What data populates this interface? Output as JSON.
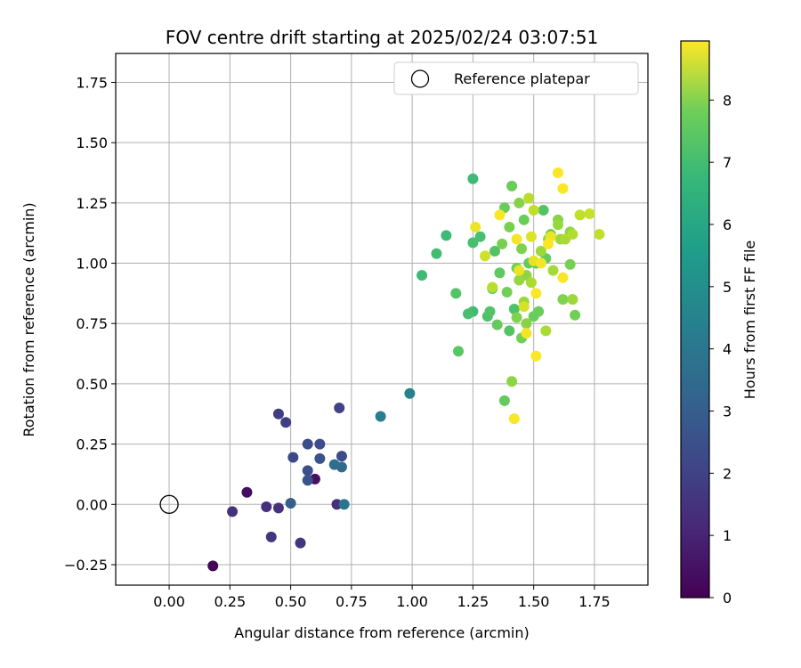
{
  "chart_data": {
    "type": "scatter",
    "title": "FOV centre drift starting at 2025/02/24 03:07:51",
    "xlabel": "Angular distance from reference (arcmin)",
    "ylabel": "Rotation from reference (arcmin)",
    "xlim": [
      -0.22,
      1.97
    ],
    "ylim": [
      -0.335,
      1.87
    ],
    "xticks": [
      0.0,
      0.25,
      0.5,
      0.75,
      1.0,
      1.25,
      1.5,
      1.75
    ],
    "xtick_labels": [
      "0.00",
      "0.25",
      "0.50",
      "0.75",
      "1.00",
      "1.25",
      "1.50",
      "1.75"
    ],
    "yticks": [
      -0.25,
      0.0,
      0.25,
      0.5,
      0.75,
      1.0,
      1.25,
      1.5,
      1.75
    ],
    "ytick_labels": [
      "−0.25",
      "0.00",
      "0.25",
      "0.50",
      "0.75",
      "1.00",
      "1.25",
      "1.50",
      "1.75"
    ],
    "grid": true,
    "legend": {
      "position": "top-right",
      "entries": [
        {
          "label": "Reference platepar",
          "marker": "open-circle",
          "x": 0.0,
          "y": 0.0
        }
      ]
    },
    "colorbar": {
      "label": "Hours from first FF file",
      "colormap": "viridis",
      "range": [
        0,
        8.95
      ],
      "ticks": [
        0,
        1,
        2,
        3,
        4,
        5,
        6,
        7,
        8
      ],
      "tick_labels": [
        "0",
        "1",
        "2",
        "3",
        "4",
        "5",
        "6",
        "7",
        "8"
      ]
    },
    "series": [
      {
        "points": [
          {
            "x": 0.18,
            "y": -0.255,
            "c": 0.1
          },
          {
            "x": 0.32,
            "y": 0.05,
            "c": 0.3
          },
          {
            "x": 0.6,
            "y": 0.105,
            "c": 0.4
          },
          {
            "x": 0.26,
            "y": -0.03,
            "c": 1.3
          },
          {
            "x": 0.4,
            "y": -0.01,
            "c": 1.2
          },
          {
            "x": 0.45,
            "y": -0.015,
            "c": 1.3
          },
          {
            "x": 0.42,
            "y": -0.135,
            "c": 1.4
          },
          {
            "x": 0.54,
            "y": -0.16,
            "c": 1.4
          },
          {
            "x": 0.69,
            "y": 0.0,
            "c": 1.2
          },
          {
            "x": 0.45,
            "y": 0.375,
            "c": 1.6
          },
          {
            "x": 0.48,
            "y": 0.34,
            "c": 1.7
          },
          {
            "x": 0.7,
            "y": 0.4,
            "c": 1.8
          },
          {
            "x": 0.51,
            "y": 0.195,
            "c": 2.0
          },
          {
            "x": 0.57,
            "y": 0.25,
            "c": 2.1
          },
          {
            "x": 0.62,
            "y": 0.25,
            "c": 2.1
          },
          {
            "x": 0.57,
            "y": 0.14,
            "c": 2.2
          },
          {
            "x": 0.57,
            "y": 0.1,
            "c": 2.3
          },
          {
            "x": 0.62,
            "y": 0.19,
            "c": 2.3
          },
          {
            "x": 0.71,
            "y": 0.2,
            "c": 2.1
          },
          {
            "x": 0.5,
            "y": 0.005,
            "c": 2.7
          },
          {
            "x": 0.68,
            "y": 0.165,
            "c": 3.2
          },
          {
            "x": 0.71,
            "y": 0.155,
            "c": 3.1
          },
          {
            "x": 0.72,
            "y": 0.0,
            "c": 3.4
          },
          {
            "x": 0.87,
            "y": 0.365,
            "c": 3.8
          },
          {
            "x": 0.99,
            "y": 0.46,
            "c": 4.0
          },
          {
            "x": 1.04,
            "y": 0.95,
            "c": 6.1
          },
          {
            "x": 1.1,
            "y": 1.04,
            "c": 6.2
          },
          {
            "x": 1.14,
            "y": 1.115,
            "c": 6.1
          },
          {
            "x": 1.18,
            "y": 0.875,
            "c": 6.5
          },
          {
            "x": 1.19,
            "y": 0.635,
            "c": 6.6
          },
          {
            "x": 1.23,
            "y": 0.79,
            "c": 6.3
          },
          {
            "x": 1.25,
            "y": 0.8,
            "c": 6.2
          },
          {
            "x": 1.25,
            "y": 1.085,
            "c": 6.3
          },
          {
            "x": 1.25,
            "y": 1.35,
            "c": 6.1
          },
          {
            "x": 1.28,
            "y": 1.11,
            "c": 6.3
          },
          {
            "x": 1.31,
            "y": 0.78,
            "c": 6.4
          },
          {
            "x": 1.32,
            "y": 0.8,
            "c": 6.5
          },
          {
            "x": 1.33,
            "y": 0.895,
            "c": 6.5
          },
          {
            "x": 1.34,
            "y": 1.05,
            "c": 6.5
          },
          {
            "x": 1.35,
            "y": 0.745,
            "c": 6.8
          },
          {
            "x": 1.36,
            "y": 0.96,
            "c": 6.7
          },
          {
            "x": 1.37,
            "y": 1.08,
            "c": 7.1
          },
          {
            "x": 1.38,
            "y": 0.43,
            "c": 6.8
          },
          {
            "x": 1.38,
            "y": 1.23,
            "c": 6.9
          },
          {
            "x": 1.39,
            "y": 0.88,
            "c": 7.0
          },
          {
            "x": 1.4,
            "y": 0.72,
            "c": 6.5
          },
          {
            "x": 1.4,
            "y": 1.15,
            "c": 7.1
          },
          {
            "x": 1.41,
            "y": 0.51,
            "c": 7.4
          },
          {
            "x": 1.41,
            "y": 1.32,
            "c": 6.9
          },
          {
            "x": 1.42,
            "y": 0.81,
            "c": 6.4
          },
          {
            "x": 1.43,
            "y": 0.775,
            "c": 7.2
          },
          {
            "x": 1.43,
            "y": 0.98,
            "c": 7.0
          },
          {
            "x": 1.44,
            "y": 0.93,
            "c": 7.5
          },
          {
            "x": 1.44,
            "y": 1.25,
            "c": 7.3
          },
          {
            "x": 1.45,
            "y": 0.69,
            "c": 7.0
          },
          {
            "x": 1.45,
            "y": 1.06,
            "c": 7.2
          },
          {
            "x": 1.46,
            "y": 0.84,
            "c": 7.6
          },
          {
            "x": 1.46,
            "y": 1.18,
            "c": 6.9
          },
          {
            "x": 1.47,
            "y": 0.95,
            "c": 7.4
          },
          {
            "x": 1.47,
            "y": 0.75,
            "c": 7.3
          },
          {
            "x": 1.48,
            "y": 1.27,
            "c": 8.0
          },
          {
            "x": 1.48,
            "y": 1.0,
            "c": 6.8
          },
          {
            "x": 1.49,
            "y": 0.92,
            "c": 7.8
          },
          {
            "x": 1.5,
            "y": 1.22,
            "c": 8.1
          },
          {
            "x": 1.5,
            "y": 0.78,
            "c": 6.9
          },
          {
            "x": 1.51,
            "y": 1.0,
            "c": 6.6
          },
          {
            "x": 1.52,
            "y": 0.8,
            "c": 6.9
          },
          {
            "x": 1.53,
            "y": 1.05,
            "c": 7.6
          },
          {
            "x": 1.54,
            "y": 1.22,
            "c": 6.5
          },
          {
            "x": 1.55,
            "y": 1.02,
            "c": 6.8
          },
          {
            "x": 1.55,
            "y": 0.72,
            "c": 7.8
          },
          {
            "x": 1.56,
            "y": 1.1,
            "c": 7.5
          },
          {
            "x": 1.57,
            "y": 1.12,
            "c": 7.0
          },
          {
            "x": 1.58,
            "y": 0.97,
            "c": 7.7
          },
          {
            "x": 1.6,
            "y": 1.18,
            "c": 7.3
          },
          {
            "x": 1.6,
            "y": 1.16,
            "c": 7.5
          },
          {
            "x": 1.61,
            "y": 1.1,
            "c": 7.6
          },
          {
            "x": 1.62,
            "y": 0.85,
            "c": 7.2
          },
          {
            "x": 1.63,
            "y": 1.1,
            "c": 7.8
          },
          {
            "x": 1.65,
            "y": 0.995,
            "c": 7.1
          },
          {
            "x": 1.65,
            "y": 1.13,
            "c": 7.4
          },
          {
            "x": 1.66,
            "y": 0.85,
            "c": 7.6
          },
          {
            "x": 1.66,
            "y": 1.12,
            "c": 7.9
          },
          {
            "x": 1.67,
            "y": 0.785,
            "c": 7.0
          },
          {
            "x": 1.69,
            "y": 1.2,
            "c": 8.1
          },
          {
            "x": 1.73,
            "y": 1.205,
            "c": 8.2
          },
          {
            "x": 1.77,
            "y": 1.12,
            "c": 8.1
          },
          {
            "x": 1.3,
            "y": 1.03,
            "c": 8.3
          },
          {
            "x": 1.33,
            "y": 0.9,
            "c": 8.0
          },
          {
            "x": 1.36,
            "y": 1.2,
            "c": 8.9
          },
          {
            "x": 1.43,
            "y": 1.1,
            "c": 8.8
          },
          {
            "x": 1.42,
            "y": 0.355,
            "c": 8.9
          },
          {
            "x": 1.44,
            "y": 0.97,
            "c": 8.7
          },
          {
            "x": 1.46,
            "y": 0.82,
            "c": 8.4
          },
          {
            "x": 1.47,
            "y": 0.71,
            "c": 8.8
          },
          {
            "x": 1.49,
            "y": 1.11,
            "c": 8.5
          },
          {
            "x": 1.5,
            "y": 1.01,
            "c": 8.6
          },
          {
            "x": 1.51,
            "y": 0.615,
            "c": 8.9
          },
          {
            "x": 1.51,
            "y": 0.875,
            "c": 8.9
          },
          {
            "x": 1.53,
            "y": 1.0,
            "c": 8.8
          },
          {
            "x": 1.56,
            "y": 1.08,
            "c": 8.9
          },
          {
            "x": 1.57,
            "y": 1.11,
            "c": 8.7
          },
          {
            "x": 1.6,
            "y": 1.375,
            "c": 8.9
          },
          {
            "x": 1.62,
            "y": 1.31,
            "c": 8.9
          },
          {
            "x": 1.62,
            "y": 0.94,
            "c": 8.9
          },
          {
            "x": 1.26,
            "y": 1.15,
            "c": 8.7
          }
        ]
      }
    ]
  }
}
